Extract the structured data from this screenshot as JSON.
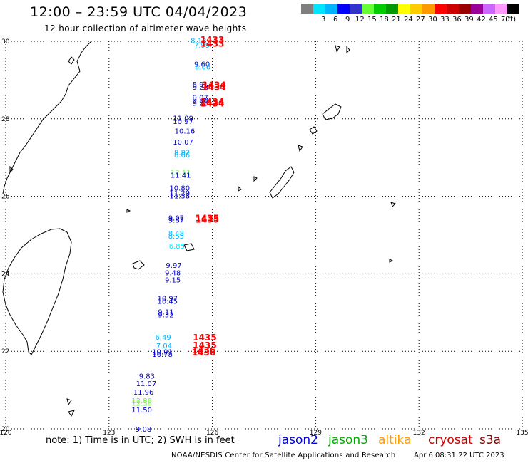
{
  "header": {
    "title": "12:00 – 23:59 UTC 04/04/2023",
    "subtitle": "12 hour collection of altimeter wave heights"
  },
  "color_scale": {
    "unit_label": "(ft)",
    "bins": [
      {
        "label": "",
        "color": "#7f7f7f"
      },
      {
        "label": "3",
        "color": "#00e5ff"
      },
      {
        "label": "6",
        "color": "#00b4ff"
      },
      {
        "label": "9",
        "color": "#0000ff"
      },
      {
        "label": "12",
        "color": "#3333cc"
      },
      {
        "label": "15",
        "color": "#66ff33"
      },
      {
        "label": "18",
        "color": "#00cc00"
      },
      {
        "label": "21",
        "color": "#009900"
      },
      {
        "label": "24",
        "color": "#ffff00"
      },
      {
        "label": "27",
        "color": "#ffcc00"
      },
      {
        "label": "30",
        "color": "#ff9900"
      },
      {
        "label": "33",
        "color": "#ff0000"
      },
      {
        "label": "36",
        "color": "#cc0000"
      },
      {
        "label": "39",
        "color": "#990000"
      },
      {
        "label": "42",
        "color": "#990099"
      },
      {
        "label": "45",
        "color": "#cc66ff"
      },
      {
        "label": "70",
        "color": "#ff99ff"
      },
      {
        "label": "",
        "color": "#000000"
      }
    ]
  },
  "map": {
    "lon_range": [
      120,
      135
    ],
    "lat_range": [
      20,
      30
    ],
    "lon_ticks": [
      "120",
      "123",
      "126",
      "129",
      "132",
      "135"
    ],
    "lat_ticks": [
      "30",
      "28",
      "26",
      "24",
      "22",
      "20"
    ]
  },
  "observations": [
    {
      "value": "8.13",
      "lon": 125.6,
      "lat": 29.95,
      "color": "#00b4ff"
    },
    {
      "value": "7.99",
      "lon": 125.7,
      "lat": 29.83,
      "color": "#00b4ff"
    },
    {
      "value": "9.60",
      "lon": 125.7,
      "lat": 29.35,
      "color": "#0000cc"
    },
    {
      "value": "8.66",
      "lon": 125.72,
      "lat": 29.27,
      "color": "#00b4ff"
    },
    {
      "value": "8.91",
      "lon": 125.65,
      "lat": 28.82,
      "color": "#0000cc"
    },
    {
      "value": "9.28",
      "lon": 125.65,
      "lat": 28.75,
      "color": "#0000cc"
    },
    {
      "value": "9.07",
      "lon": 125.65,
      "lat": 28.48,
      "color": "#0000cc"
    },
    {
      "value": "9.38",
      "lon": 125.65,
      "lat": 28.42,
      "color": "#0000cc"
    },
    {
      "value": "9.23",
      "lon": 125.65,
      "lat": 28.34,
      "color": "#0000cc"
    },
    {
      "value": "11.09",
      "lon": 125.15,
      "lat": 27.95,
      "color": "#0000cc"
    },
    {
      "value": "10.97",
      "lon": 125.15,
      "lat": 27.87,
      "color": "#0000cc"
    },
    {
      "value": "10.16",
      "lon": 125.2,
      "lat": 27.62,
      "color": "#0000cc"
    },
    {
      "value": "10.07",
      "lon": 125.15,
      "lat": 27.33,
      "color": "#0000cc"
    },
    {
      "value": "8.82",
      "lon": 125.12,
      "lat": 27.07,
      "color": "#00b4ff"
    },
    {
      "value": "8.66",
      "lon": 125.12,
      "lat": 27.0,
      "color": "#00b4ff"
    },
    {
      "value": "12.11",
      "lon": 125.08,
      "lat": 26.55,
      "color": "#66ff33"
    },
    {
      "value": "11.41",
      "lon": 125.08,
      "lat": 26.48,
      "color": "#0000cc"
    },
    {
      "value": "10.80",
      "lon": 125.05,
      "lat": 26.15,
      "color": "#0000cc"
    },
    {
      "value": "11.29",
      "lon": 125.05,
      "lat": 26.02,
      "color": "#0000cc"
    },
    {
      "value": "11.38",
      "lon": 125.05,
      "lat": 25.95,
      "color": "#0000cc"
    },
    {
      "value": "9.07",
      "lon": 124.95,
      "lat": 25.38,
      "color": "#0000cc"
    },
    {
      "value": "9.87",
      "lon": 124.95,
      "lat": 25.32,
      "color": "#0000cc"
    },
    {
      "value": "8.48",
      "lon": 124.95,
      "lat": 24.98,
      "color": "#00b4ff"
    },
    {
      "value": "8.55",
      "lon": 124.95,
      "lat": 24.91,
      "color": "#00b4ff"
    },
    {
      "value": "6.85",
      "lon": 124.97,
      "lat": 24.65,
      "color": "#00e5ff"
    },
    {
      "value": "9.97",
      "lon": 124.88,
      "lat": 24.15,
      "color": "#0000cc"
    },
    {
      "value": "9.48",
      "lon": 124.85,
      "lat": 23.96,
      "color": "#0000cc"
    },
    {
      "value": "9.15",
      "lon": 124.85,
      "lat": 23.78,
      "color": "#0000cc"
    },
    {
      "value": "10.97",
      "lon": 124.7,
      "lat": 23.3,
      "color": "#0000cc"
    },
    {
      "value": "10.45",
      "lon": 124.7,
      "lat": 23.23,
      "color": "#0000cc"
    },
    {
      "value": "9.11",
      "lon": 124.65,
      "lat": 22.95,
      "color": "#0000cc"
    },
    {
      "value": "9.32",
      "lon": 124.65,
      "lat": 22.88,
      "color": "#0000cc"
    },
    {
      "value": "6.49",
      "lon": 124.57,
      "lat": 22.3,
      "color": "#00b4ff"
    },
    {
      "value": "7.04",
      "lon": 124.6,
      "lat": 22.08,
      "color": "#00b4ff"
    },
    {
      "value": "10.91",
      "lon": 124.55,
      "lat": 21.92,
      "color": "#0000cc"
    },
    {
      "value": "10.78",
      "lon": 124.55,
      "lat": 21.86,
      "color": "#0000cc"
    },
    {
      "value": "9.83",
      "lon": 124.1,
      "lat": 21.3,
      "color": "#0000cc"
    },
    {
      "value": "11.07",
      "lon": 124.08,
      "lat": 21.1,
      "color": "#0000cc"
    },
    {
      "value": "11.96",
      "lon": 124.0,
      "lat": 20.88,
      "color": "#0000cc"
    },
    {
      "value": "12.80",
      "lon": 123.95,
      "lat": 20.66,
      "color": "#66ff33"
    },
    {
      "value": "12.58",
      "lon": 123.95,
      "lat": 20.6,
      "color": "#66ff33"
    },
    {
      "value": "11.50",
      "lon": 123.95,
      "lat": 20.42,
      "color": "#0000cc"
    },
    {
      "value": "9.08",
      "lon": 124.0,
      "lat": 19.93,
      "color": "#0000cc"
    }
  ],
  "time_labels": [
    {
      "value": "1433",
      "lon": 126.0,
      "lat": 29.96
    },
    {
      "value": "1433",
      "lon": 126.0,
      "lat": 29.86
    },
    {
      "value": "1434",
      "lon": 126.05,
      "lat": 28.8
    },
    {
      "value": "1434",
      "lon": 126.05,
      "lat": 28.74
    },
    {
      "value": "1434",
      "lon": 126.0,
      "lat": 28.36
    },
    {
      "value": "1434",
      "lon": 126.0,
      "lat": 28.32
    },
    {
      "value": "1435",
      "lon": 125.85,
      "lat": 25.36
    },
    {
      "value": "1435",
      "lon": 125.85,
      "lat": 25.32
    },
    {
      "value": "1435",
      "lon": 125.78,
      "lat": 22.28
    },
    {
      "value": "1435",
      "lon": 125.78,
      "lat": 22.08
    },
    {
      "value": "1436",
      "lon": 125.75,
      "lat": 21.95
    },
    {
      "value": "1436",
      "lon": 125.75,
      "lat": 21.89
    }
  ],
  "footer": {
    "note": "note: 1) Time is in UTC; 2) SWH is in feet",
    "legend": [
      {
        "label": "jason2",
        "color": "#0000dd"
      },
      {
        "label": "jason3",
        "color": "#00aa00"
      },
      {
        "label": "altika",
        "color": "#ff9900"
      },
      {
        "label": "cryosat",
        "color": "#cc0000"
      },
      {
        "label": "s3a",
        "color": "#880000"
      }
    ],
    "credit": "NOAA/NESDIS Center for Satellite Applications and Research",
    "generated": "Apr  6 08:31:22 UTC 2023"
  }
}
